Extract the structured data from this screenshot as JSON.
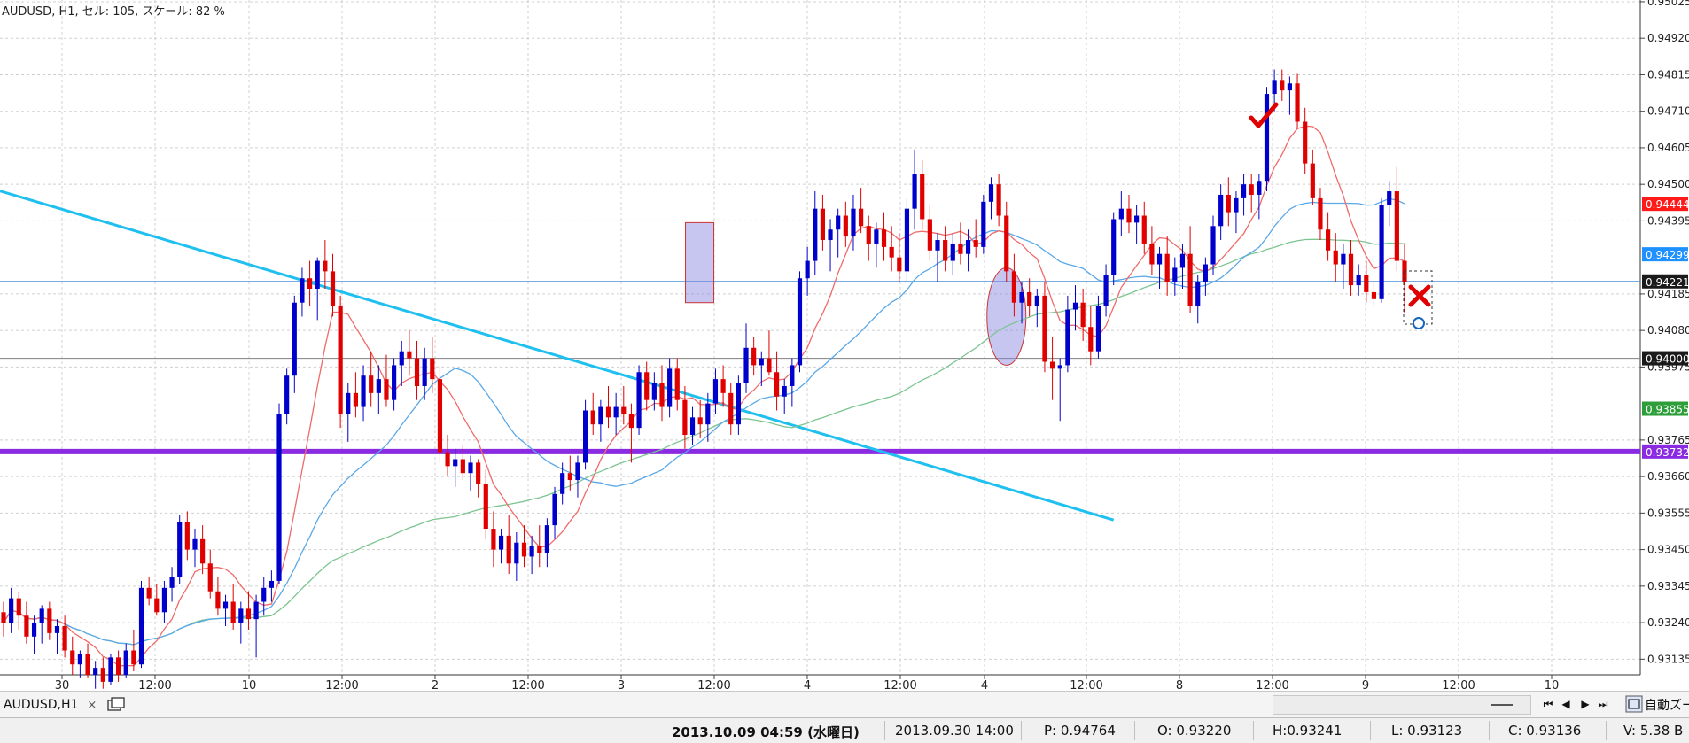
{
  "header": {
    "symbol_info": "AUDUSD, H1, セル: 105, スケール: 82 %"
  },
  "tab": {
    "label": "AUDUSD,H1",
    "close": "×"
  },
  "nav": {
    "first": "⏮",
    "prev": "◀",
    "next": "▶",
    "last": "⏭",
    "zoom_label": "自動ズーム"
  },
  "status": {
    "datetime": "2013.10.09 04:59 (水曜日)",
    "cursor_time": "2013.09.30 14:00",
    "p": "P: 0.94764",
    "o": "O: 0.93220",
    "h": "H:0.93241",
    "l": "L: 0.93123",
    "c": "C: 0.93136",
    "v": "V: 5.38 B"
  },
  "chart_data": {
    "type": "candlestick",
    "symbol": "AUDUSD",
    "timeframe": "H1",
    "ylim": [
      0.9309,
      0.9503
    ],
    "y_ticks": [
      "0.95025",
      "0.94920",
      "0.94815",
      "0.94710",
      "0.94605",
      "0.94500",
      "0.94395",
      "0.94185",
      "0.94080",
      "0.93975",
      "0.93765",
      "0.93660",
      "0.93555",
      "0.93450",
      "0.93345",
      "0.93240",
      "0.93135"
    ],
    "x_ticks": [
      "30",
      "12:00",
      "10",
      "12:00",
      "2",
      "12:00",
      "3",
      "12:00",
      "4",
      "12:00",
      "4",
      "12:00",
      "8",
      "12:00",
      "9",
      "12:00",
      "10"
    ],
    "price_tags": [
      {
        "label": "0.94444",
        "value": 0.94444,
        "color": "#ff1a1a"
      },
      {
        "label": "0.94299",
        "value": 0.94299,
        "color": "#1e90ff"
      },
      {
        "label": "0.94221",
        "value": 0.94221,
        "color": "#1a1a1a"
      },
      {
        "label": "0.94000",
        "value": 0.94,
        "color": "#1a1a1a"
      },
      {
        "label": "0.93855",
        "value": 0.93855,
        "color": "#2e9e3a"
      },
      {
        "label": "0.93732",
        "value": 0.93732,
        "color": "#8a2be2"
      }
    ],
    "horizontal_lines": [
      {
        "value": 0.94221,
        "color": "#4a90d9"
      },
      {
        "value": 0.94,
        "color": "#808080"
      },
      {
        "value": 0.93732,
        "color": "#8a2be2"
      }
    ],
    "colors": {
      "up": "#0000cc",
      "down": "#e00000",
      "ma_fast": "#f06a6a",
      "ma_mid": "#5aa8e8",
      "ma_slow": "#7cc490",
      "trend": "#1fc0f0",
      "grid": "#d0d0d0",
      "highlight": "#8080e0"
    },
    "candles": [
      [
        0.9327,
        0.933,
        0.932,
        0.9324
      ],
      [
        0.9324,
        0.9334,
        0.9321,
        0.9331
      ],
      [
        0.9331,
        0.9333,
        0.9322,
        0.9326
      ],
      [
        0.9326,
        0.933,
        0.9318,
        0.932
      ],
      [
        0.932,
        0.9326,
        0.9315,
        0.9324
      ],
      [
        0.9324,
        0.9329,
        0.9318,
        0.9328
      ],
      [
        0.9328,
        0.933,
        0.9319,
        0.9321
      ],
      [
        0.9321,
        0.9325,
        0.9315,
        0.9323
      ],
      [
        0.9323,
        0.9326,
        0.9314,
        0.9316
      ],
      [
        0.9316,
        0.932,
        0.9309,
        0.9312
      ],
      [
        0.9312,
        0.9316,
        0.9308,
        0.9315
      ],
      [
        0.9315,
        0.9318,
        0.9308,
        0.9309
      ],
      [
        0.9309,
        0.9313,
        0.9305,
        0.9311
      ],
      [
        0.9311,
        0.9314,
        0.9305,
        0.9307
      ],
      [
        0.9307,
        0.9315,
        0.9306,
        0.9314
      ],
      [
        0.9314,
        0.9316,
        0.9307,
        0.9309
      ],
      [
        0.9309,
        0.9318,
        0.9308,
        0.9316
      ],
      [
        0.9316,
        0.9322,
        0.931,
        0.9312
      ],
      [
        0.9312,
        0.9336,
        0.9311,
        0.9334
      ],
      [
        0.9334,
        0.9337,
        0.9329,
        0.9331
      ],
      [
        0.9331,
        0.9335,
        0.9326,
        0.9327
      ],
      [
        0.9327,
        0.9336,
        0.9324,
        0.9334
      ],
      [
        0.9334,
        0.934,
        0.933,
        0.9337
      ],
      [
        0.9337,
        0.9355,
        0.9335,
        0.9353
      ],
      [
        0.9353,
        0.9356,
        0.9342,
        0.9345
      ],
      [
        0.9345,
        0.9351,
        0.934,
        0.9348
      ],
      [
        0.9348,
        0.9352,
        0.9338,
        0.9341
      ],
      [
        0.9341,
        0.9345,
        0.9331,
        0.9333
      ],
      [
        0.9333,
        0.9337,
        0.9326,
        0.9328
      ],
      [
        0.9328,
        0.9332,
        0.9323,
        0.933
      ],
      [
        0.933,
        0.9335,
        0.9322,
        0.9324
      ],
      [
        0.9324,
        0.933,
        0.9318,
        0.9328
      ],
      [
        0.9328,
        0.9333,
        0.9322,
        0.9325
      ],
      [
        0.9325,
        0.9332,
        0.9314,
        0.933
      ],
      [
        0.933,
        0.9337,
        0.9326,
        0.9334
      ],
      [
        0.9334,
        0.9339,
        0.933,
        0.9336
      ],
      [
        0.9336,
        0.9387,
        0.9335,
        0.9384
      ],
      [
        0.9384,
        0.9397,
        0.9381,
        0.9395
      ],
      [
        0.9395,
        0.9418,
        0.939,
        0.9416
      ],
      [
        0.9416,
        0.9426,
        0.9412,
        0.9423
      ],
      [
        0.9423,
        0.9428,
        0.9415,
        0.942
      ],
      [
        0.942,
        0.9429,
        0.9411,
        0.9428
      ],
      [
        0.9428,
        0.9434,
        0.942,
        0.9425
      ],
      [
        0.9425,
        0.943,
        0.9412,
        0.9415
      ],
      [
        0.9415,
        0.9418,
        0.938,
        0.9384
      ],
      [
        0.9384,
        0.9393,
        0.9376,
        0.939
      ],
      [
        0.939,
        0.9396,
        0.9383,
        0.9386
      ],
      [
        0.9386,
        0.9398,
        0.9382,
        0.9395
      ],
      [
        0.9395,
        0.9402,
        0.9386,
        0.939
      ],
      [
        0.939,
        0.9398,
        0.9384,
        0.9394
      ],
      [
        0.9394,
        0.9401,
        0.9386,
        0.9388
      ],
      [
        0.9388,
        0.94,
        0.9385,
        0.9398
      ],
      [
        0.9398,
        0.9405,
        0.9392,
        0.9402
      ],
      [
        0.9402,
        0.9408,
        0.9395,
        0.94
      ],
      [
        0.94,
        0.9405,
        0.9388,
        0.9392
      ],
      [
        0.9392,
        0.9403,
        0.9388,
        0.94
      ],
      [
        0.94,
        0.9406,
        0.939,
        0.9394
      ],
      [
        0.9394,
        0.9398,
        0.937,
        0.9373
      ],
      [
        0.9373,
        0.9378,
        0.9366,
        0.9369
      ],
      [
        0.9369,
        0.9374,
        0.9363,
        0.9371
      ],
      [
        0.9371,
        0.9375,
        0.9365,
        0.9367
      ],
      [
        0.9367,
        0.9372,
        0.9362,
        0.937
      ],
      [
        0.937,
        0.9371,
        0.936,
        0.9364
      ],
      [
        0.9364,
        0.9368,
        0.9348,
        0.9351
      ],
      [
        0.9351,
        0.9356,
        0.934,
        0.9345
      ],
      [
        0.9345,
        0.9351,
        0.9341,
        0.9349
      ],
      [
        0.9349,
        0.9355,
        0.9338,
        0.9341
      ],
      [
        0.9341,
        0.935,
        0.9336,
        0.9347
      ],
      [
        0.9347,
        0.9352,
        0.934,
        0.9343
      ],
      [
        0.9343,
        0.9349,
        0.9338,
        0.9346
      ],
      [
        0.9346,
        0.9352,
        0.934,
        0.9344
      ],
      [
        0.9344,
        0.9354,
        0.934,
        0.9352
      ],
      [
        0.9352,
        0.9363,
        0.9348,
        0.9361
      ],
      [
        0.9361,
        0.937,
        0.9358,
        0.9367
      ],
      [
        0.9367,
        0.9372,
        0.9362,
        0.9365
      ],
      [
        0.9365,
        0.9372,
        0.936,
        0.937
      ],
      [
        0.937,
        0.9388,
        0.9368,
        0.9385
      ],
      [
        0.9385,
        0.939,
        0.9378,
        0.9381
      ],
      [
        0.9381,
        0.9388,
        0.9376,
        0.9386
      ],
      [
        0.9386,
        0.9392,
        0.938,
        0.9383
      ],
      [
        0.9383,
        0.939,
        0.9378,
        0.9386
      ],
      [
        0.9386,
        0.9392,
        0.9381,
        0.9384
      ],
      [
        0.9384,
        0.9387,
        0.937,
        0.938
      ],
      [
        0.938,
        0.9398,
        0.9378,
        0.9396
      ],
      [
        0.9396,
        0.9399,
        0.9385,
        0.9388
      ],
      [
        0.9388,
        0.9396,
        0.9385,
        0.9393
      ],
      [
        0.9393,
        0.9398,
        0.9382,
        0.9386
      ],
      [
        0.9386,
        0.94,
        0.9383,
        0.9397
      ],
      [
        0.9397,
        0.94,
        0.9385,
        0.9388
      ],
      [
        0.9388,
        0.9392,
        0.9374,
        0.9378
      ],
      [
        0.9378,
        0.9386,
        0.9375,
        0.9383
      ],
      [
        0.9383,
        0.9388,
        0.9377,
        0.9381
      ],
      [
        0.9381,
        0.939,
        0.9376,
        0.9387
      ],
      [
        0.9387,
        0.9397,
        0.9384,
        0.9394
      ],
      [
        0.9394,
        0.9398,
        0.9386,
        0.939
      ],
      [
        0.939,
        0.9393,
        0.9378,
        0.9381
      ],
      [
        0.9381,
        0.9395,
        0.9378,
        0.9393
      ],
      [
        0.9393,
        0.941,
        0.939,
        0.9403
      ],
      [
        0.9403,
        0.9406,
        0.9395,
        0.9398
      ],
      [
        0.9398,
        0.9402,
        0.9392,
        0.94
      ],
      [
        0.94,
        0.9408,
        0.9395,
        0.9396
      ],
      [
        0.9396,
        0.9402,
        0.9385,
        0.9389
      ],
      [
        0.9389,
        0.9394,
        0.9384,
        0.9392
      ],
      [
        0.9392,
        0.94,
        0.9386,
        0.9398
      ],
      [
        0.9398,
        0.9425,
        0.9396,
        0.9423
      ],
      [
        0.9423,
        0.9432,
        0.9418,
        0.9428
      ],
      [
        0.9428,
        0.9448,
        0.9424,
        0.9443
      ],
      [
        0.9443,
        0.9447,
        0.9431,
        0.9434
      ],
      [
        0.9434,
        0.944,
        0.9425,
        0.9437
      ],
      [
        0.9437,
        0.9443,
        0.9429,
        0.9441
      ],
      [
        0.9441,
        0.9445,
        0.9432,
        0.9435
      ],
      [
        0.9435,
        0.9447,
        0.9431,
        0.9443
      ],
      [
        0.9443,
        0.9449,
        0.9436,
        0.9438
      ],
      [
        0.9438,
        0.9441,
        0.9428,
        0.9433
      ],
      [
        0.9433,
        0.9439,
        0.9426,
        0.9437
      ],
      [
        0.9437,
        0.9442,
        0.9428,
        0.9432
      ],
      [
        0.9432,
        0.9438,
        0.9425,
        0.9429
      ],
      [
        0.9429,
        0.9436,
        0.9422,
        0.9425
      ],
      [
        0.9425,
        0.9446,
        0.9422,
        0.9443
      ],
      [
        0.9443,
        0.946,
        0.9437,
        0.9453
      ],
      [
        0.9453,
        0.9457,
        0.9437,
        0.944
      ],
      [
        0.944,
        0.9444,
        0.9428,
        0.9431
      ],
      [
        0.9431,
        0.9436,
        0.9422,
        0.9434
      ],
      [
        0.9434,
        0.9438,
        0.9425,
        0.9428
      ],
      [
        0.9428,
        0.9436,
        0.9424,
        0.9433
      ],
      [
        0.9433,
        0.9439,
        0.9427,
        0.943
      ],
      [
        0.943,
        0.9437,
        0.9425,
        0.9434
      ],
      [
        0.9434,
        0.944,
        0.9429,
        0.9432
      ],
      [
        0.9432,
        0.9447,
        0.943,
        0.9445
      ],
      [
        0.9445,
        0.9452,
        0.944,
        0.945
      ],
      [
        0.945,
        0.9453,
        0.9438,
        0.9441
      ],
      [
        0.9441,
        0.9445,
        0.9422,
        0.9425
      ],
      [
        0.9425,
        0.943,
        0.9412,
        0.9416
      ],
      [
        0.9416,
        0.9422,
        0.941,
        0.9419
      ],
      [
        0.9419,
        0.9423,
        0.9412,
        0.9415
      ],
      [
        0.9415,
        0.942,
        0.9409,
        0.9418
      ],
      [
        0.9418,
        0.9422,
        0.9396,
        0.9399
      ],
      [
        0.9399,
        0.9406,
        0.9388,
        0.9397
      ],
      [
        0.9397,
        0.94,
        0.9382,
        0.9398
      ],
      [
        0.9398,
        0.9418,
        0.9396,
        0.9414
      ],
      [
        0.9414,
        0.9421,
        0.9408,
        0.9416
      ],
      [
        0.9416,
        0.942,
        0.9405,
        0.9409
      ],
      [
        0.9409,
        0.9415,
        0.9398,
        0.9402
      ],
      [
        0.9402,
        0.9418,
        0.94,
        0.9415
      ],
      [
        0.9415,
        0.9427,
        0.9412,
        0.9424
      ],
      [
        0.9424,
        0.9442,
        0.9421,
        0.944
      ],
      [
        0.944,
        0.9448,
        0.9435,
        0.9443
      ],
      [
        0.9443,
        0.9447,
        0.9436,
        0.9439
      ],
      [
        0.9439,
        0.9444,
        0.9433,
        0.9441
      ],
      [
        0.9441,
        0.9445,
        0.943,
        0.9433
      ],
      [
        0.9433,
        0.9438,
        0.9424,
        0.9427
      ],
      [
        0.9427,
        0.9432,
        0.942,
        0.943
      ],
      [
        0.943,
        0.9435,
        0.9418,
        0.9422
      ],
      [
        0.9422,
        0.9429,
        0.9418,
        0.9426
      ],
      [
        0.9426,
        0.9433,
        0.942,
        0.943
      ],
      [
        0.943,
        0.9438,
        0.9413,
        0.9415
      ],
      [
        0.9415,
        0.9424,
        0.941,
        0.9422
      ],
      [
        0.9422,
        0.9429,
        0.9418,
        0.9427
      ],
      [
        0.9427,
        0.9441,
        0.9424,
        0.9438
      ],
      [
        0.9438,
        0.945,
        0.9434,
        0.9447
      ],
      [
        0.9447,
        0.9452,
        0.9438,
        0.9442
      ],
      [
        0.9442,
        0.9448,
        0.9436,
        0.9446
      ],
      [
        0.9446,
        0.9453,
        0.9441,
        0.945
      ],
      [
        0.945,
        0.9453,
        0.9442,
        0.9447
      ],
      [
        0.9447,
        0.9453,
        0.944,
        0.9451
      ],
      [
        0.9451,
        0.9478,
        0.9448,
        0.9476
      ],
      [
        0.9476,
        0.9483,
        0.9471,
        0.948
      ],
      [
        0.948,
        0.9483,
        0.9474,
        0.9477
      ],
      [
        0.9477,
        0.9481,
        0.947,
        0.9479
      ],
      [
        0.9479,
        0.9482,
        0.9466,
        0.9468
      ],
      [
        0.9468,
        0.9472,
        0.9453,
        0.9456
      ],
      [
        0.9456,
        0.946,
        0.9444,
        0.9446
      ],
      [
        0.9446,
        0.9449,
        0.9434,
        0.9437
      ],
      [
        0.9437,
        0.9442,
        0.9428,
        0.9431
      ],
      [
        0.9431,
        0.9436,
        0.9422,
        0.9427
      ],
      [
        0.9427,
        0.9433,
        0.942,
        0.943
      ],
      [
        0.943,
        0.9434,
        0.9418,
        0.9421
      ],
      [
        0.9421,
        0.9427,
        0.9418,
        0.9424
      ],
      [
        0.9424,
        0.9428,
        0.9416,
        0.9419
      ],
      [
        0.9419,
        0.9422,
        0.9415,
        0.9417
      ],
      [
        0.9417,
        0.9446,
        0.9416,
        0.9444
      ],
      [
        0.9444,
        0.9451,
        0.9438,
        0.9448
      ],
      [
        0.9448,
        0.9455,
        0.9425,
        0.9428
      ],
      [
        0.9428,
        0.9433,
        0.9413,
        0.9422
      ]
    ]
  }
}
